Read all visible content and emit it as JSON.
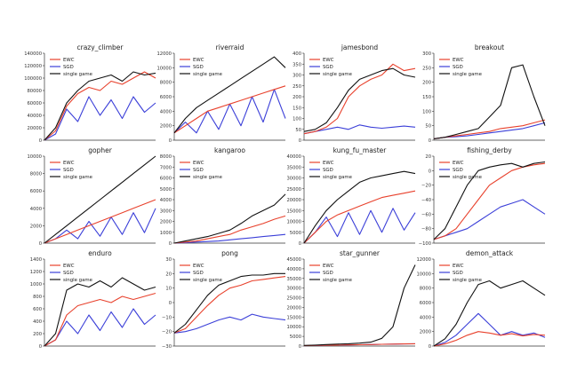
{
  "legend_labels": [
    "EWC",
    "SGD",
    "single game"
  ],
  "colors": {
    "EWC": "#e8412c",
    "SGD": "#3b3fd8",
    "single game": "#111111"
  },
  "chart_data": [
    {
      "type": "line",
      "title": "crazy_climber",
      "ylim": [
        0,
        140000
      ],
      "yticks": [
        "0",
        "20000",
        "40000",
        "60000",
        "80000",
        "100000",
        "120000",
        "140000"
      ],
      "legend": "top-left",
      "x": [
        0,
        1,
        2,
        3,
        4,
        5,
        6,
        7,
        8,
        9,
        10
      ],
      "series": [
        {
          "name": "EWC",
          "values": [
            0,
            15000,
            55000,
            75000,
            85000,
            80000,
            95000,
            90000,
            100000,
            110000,
            100000
          ]
        },
        {
          "name": "SGD",
          "values": [
            0,
            10000,
            50000,
            30000,
            70000,
            40000,
            65000,
            35000,
            70000,
            45000,
            60000
          ]
        },
        {
          "name": "single game",
          "values": [
            0,
            20000,
            60000,
            80000,
            95000,
            100000,
            105000,
            95000,
            110000,
            105000,
            108000
          ]
        }
      ]
    },
    {
      "type": "line",
      "title": "riverraid",
      "ylim": [
        0,
        12000
      ],
      "yticks": [
        "0",
        "2000",
        "4000",
        "6000",
        "8000",
        "10000",
        "12000"
      ],
      "legend": "top-left",
      "x": [
        0,
        1,
        2,
        3,
        4,
        5,
        6,
        7,
        8,
        9,
        10
      ],
      "series": [
        {
          "name": "EWC",
          "values": [
            1000,
            2000,
            3000,
            4000,
            4500,
            5000,
            5500,
            6000,
            6500,
            7000,
            7500
          ]
        },
        {
          "name": "SGD",
          "values": [
            1000,
            2500,
            1000,
            4000,
            1500,
            5000,
            2000,
            6000,
            2500,
            7000,
            3000
          ]
        },
        {
          "name": "single game",
          "values": [
            1000,
            3000,
            4500,
            5500,
            6500,
            7500,
            8500,
            9500,
            10500,
            11500,
            10000
          ]
        }
      ]
    },
    {
      "type": "line",
      "title": "jamesbond",
      "ylim": [
        0,
        400
      ],
      "yticks": [
        "0",
        "50",
        "100",
        "150",
        "200",
        "250",
        "300",
        "350",
        "400"
      ],
      "legend": "top-left",
      "x": [
        0,
        1,
        2,
        3,
        4,
        5,
        6,
        7,
        8,
        9,
        10
      ],
      "series": [
        {
          "name": "EWC",
          "values": [
            30,
            40,
            60,
            100,
            200,
            250,
            280,
            300,
            350,
            320,
            330
          ]
        },
        {
          "name": "SGD",
          "values": [
            30,
            40,
            50,
            60,
            50,
            70,
            60,
            55,
            60,
            65,
            60
          ]
        },
        {
          "name": "single game",
          "values": [
            40,
            50,
            80,
            150,
            230,
            280,
            300,
            320,
            330,
            300,
            290
          ]
        }
      ]
    },
    {
      "type": "line",
      "title": "breakout",
      "ylim": [
        0,
        300
      ],
      "yticks": [
        "0",
        "50",
        "100",
        "150",
        "200",
        "250",
        "300"
      ],
      "legend": "top-left",
      "x": [
        0,
        1,
        2,
        3,
        4,
        5,
        6,
        7,
        8,
        9,
        10
      ],
      "series": [
        {
          "name": "EWC",
          "values": [
            5,
            10,
            15,
            20,
            25,
            30,
            40,
            45,
            50,
            60,
            70
          ]
        },
        {
          "name": "SGD",
          "values": [
            5,
            10,
            12,
            15,
            20,
            25,
            30,
            35,
            40,
            50,
            60
          ]
        },
        {
          "name": "single game",
          "values": [
            5,
            10,
            20,
            30,
            40,
            80,
            120,
            250,
            260,
            150,
            50
          ]
        }
      ]
    },
    {
      "type": "line",
      "title": "gopher",
      "ylim": [
        0,
        10000
      ],
      "yticks": [
        "0",
        "2000",
        "4000",
        "6000",
        "8000",
        "10000"
      ],
      "legend": "top-left",
      "x": [
        0,
        1,
        2,
        3,
        4,
        5,
        6,
        7,
        8,
        9,
        10
      ],
      "series": [
        {
          "name": "EWC",
          "values": [
            0,
            500,
            1000,
            1500,
            2000,
            2500,
            3000,
            3500,
            4000,
            4500,
            5000
          ]
        },
        {
          "name": "SGD",
          "values": [
            0,
            500,
            1500,
            500,
            2500,
            800,
            3000,
            1000,
            3500,
            1200,
            4000
          ]
        },
        {
          "name": "single game",
          "values": [
            0,
            1000,
            2000,
            3000,
            4000,
            5000,
            6000,
            7000,
            8000,
            9000,
            10000
          ]
        }
      ]
    },
    {
      "type": "line",
      "title": "kangaroo",
      "ylim": [
        0,
        8000
      ],
      "yticks": [
        "0",
        "1000",
        "2000",
        "3000",
        "4000",
        "5000",
        "6000",
        "7000",
        "8000"
      ],
      "legend": "top-left",
      "x": [
        0,
        1,
        2,
        3,
        4,
        5,
        6,
        7,
        8,
        9,
        10
      ],
      "series": [
        {
          "name": "EWC",
          "values": [
            0,
            100,
            200,
            400,
            600,
            800,
            1200,
            1500,
            1800,
            2200,
            2500
          ]
        },
        {
          "name": "SGD",
          "values": [
            0,
            50,
            100,
            150,
            200,
            300,
            400,
            500,
            600,
            700,
            800
          ]
        },
        {
          "name": "single game",
          "values": [
            0,
            200,
            400,
            600,
            900,
            1200,
            1800,
            2500,
            3000,
            3500,
            4500
          ]
        }
      ]
    },
    {
      "type": "line",
      "title": "kung_fu_master",
      "ylim": [
        0,
        40000
      ],
      "yticks": [
        "0",
        "5000",
        "10000",
        "15000",
        "20000",
        "25000",
        "30000",
        "35000",
        "40000"
      ],
      "legend": "top-left",
      "x": [
        0,
        1,
        2,
        3,
        4,
        5,
        6,
        7,
        8,
        9,
        10
      ],
      "series": [
        {
          "name": "EWC",
          "values": [
            0,
            5000,
            10000,
            13000,
            15000,
            17000,
            19000,
            21000,
            22000,
            23000,
            24000
          ]
        },
        {
          "name": "SGD",
          "values": [
            0,
            5000,
            12000,
            3000,
            14000,
            4000,
            15000,
            5000,
            16000,
            6000,
            14000
          ]
        },
        {
          "name": "single game",
          "values": [
            0,
            8000,
            15000,
            20000,
            24000,
            28000,
            30000,
            31000,
            32000,
            33000,
            32000
          ]
        }
      ]
    },
    {
      "type": "line",
      "title": "fishing_derby",
      "ylim": [
        -100,
        20
      ],
      "yticks": [
        "−100",
        "−80",
        "−60",
        "−40",
        "−20",
        "0",
        "20"
      ],
      "legend": "top-left",
      "x": [
        0,
        1,
        2,
        3,
        4,
        5,
        6,
        7,
        8,
        9,
        10
      ],
      "series": [
        {
          "name": "EWC",
          "values": [
            -95,
            -90,
            -80,
            -60,
            -40,
            -20,
            -10,
            0,
            5,
            8,
            10
          ]
        },
        {
          "name": "SGD",
          "values": [
            -95,
            -90,
            -85,
            -80,
            -70,
            -60,
            -50,
            -45,
            -40,
            -50,
            -60
          ]
        },
        {
          "name": "single game",
          "values": [
            -95,
            -80,
            -50,
            -20,
            0,
            5,
            8,
            10,
            5,
            10,
            12
          ]
        }
      ]
    },
    {
      "type": "line",
      "title": "enduro",
      "ylim": [
        0,
        1400
      ],
      "yticks": [
        "0",
        "200",
        "400",
        "600",
        "800",
        "1000",
        "1200",
        "1400"
      ],
      "legend": "top-left",
      "x": [
        0,
        1,
        2,
        3,
        4,
        5,
        6,
        7,
        8,
        9,
        10
      ],
      "series": [
        {
          "name": "EWC",
          "values": [
            0,
            100,
            500,
            650,
            700,
            750,
            700,
            800,
            750,
            800,
            850
          ]
        },
        {
          "name": "SGD",
          "values": [
            0,
            100,
            400,
            200,
            500,
            250,
            550,
            300,
            600,
            350,
            500
          ]
        },
        {
          "name": "single game",
          "values": [
            0,
            200,
            900,
            1000,
            950,
            1050,
            950,
            1100,
            1000,
            900,
            950
          ]
        }
      ]
    },
    {
      "type": "line",
      "title": "pong",
      "ylim": [
        -30,
        30
      ],
      "yticks": [
        "−30",
        "−20",
        "−10",
        "0",
        "10",
        "20",
        "30"
      ],
      "legend": "top-left",
      "x": [
        0,
        1,
        2,
        3,
        4,
        5,
        6,
        7,
        8,
        9,
        10
      ],
      "series": [
        {
          "name": "EWC",
          "values": [
            -21,
            -18,
            -10,
            -2,
            5,
            10,
            12,
            15,
            16,
            17,
            18
          ]
        },
        {
          "name": "SGD",
          "values": [
            -21,
            -20,
            -18,
            -15,
            -12,
            -10,
            -12,
            -8,
            -10,
            -11,
            -12
          ]
        },
        {
          "name": "single game",
          "values": [
            -21,
            -15,
            -5,
            5,
            12,
            15,
            18,
            19,
            19,
            20,
            20
          ]
        }
      ]
    },
    {
      "type": "line",
      "title": "star_gunner",
      "ylim": [
        0,
        45000
      ],
      "yticks": [
        "0",
        "5000",
        "10000",
        "15000",
        "20000",
        "25000",
        "30000",
        "35000",
        "40000",
        "45000"
      ],
      "legend": "top-left",
      "x": [
        0,
        1,
        2,
        3,
        4,
        5,
        6,
        7,
        8,
        9,
        10
      ],
      "series": [
        {
          "name": "EWC",
          "values": [
            200,
            300,
            400,
            500,
            600,
            700,
            800,
            900,
            1000,
            1100,
            1200
          ]
        },
        {
          "name": "SGD",
          "values": [
            200,
            300,
            400,
            500,
            600,
            700,
            800,
            900,
            1000,
            1100,
            1200
          ]
        },
        {
          "name": "single game",
          "values": [
            300,
            500,
            800,
            1000,
            1200,
            1500,
            2000,
            4000,
            10000,
            30000,
            42000
          ]
        }
      ]
    },
    {
      "type": "line",
      "title": "demon_attack",
      "ylim": [
        0,
        12000
      ],
      "yticks": [
        "0",
        "2000",
        "4000",
        "6000",
        "8000",
        "10000",
        "12000"
      ],
      "legend": "top-left",
      "x": [
        0,
        1,
        2,
        3,
        4,
        5,
        6,
        7,
        8,
        9,
        10
      ],
      "series": [
        {
          "name": "EWC",
          "values": [
            0,
            300,
            800,
            1500,
            2000,
            1800,
            1500,
            1700,
            1400,
            1600,
            1500
          ]
        },
        {
          "name": "SGD",
          "values": [
            0,
            500,
            1500,
            3000,
            4500,
            3000,
            1500,
            2000,
            1500,
            1800,
            1200
          ]
        },
        {
          "name": "single game",
          "values": [
            0,
            1000,
            3000,
            6000,
            8500,
            9000,
            8000,
            8500,
            9000,
            8000,
            7000
          ]
        }
      ]
    }
  ]
}
